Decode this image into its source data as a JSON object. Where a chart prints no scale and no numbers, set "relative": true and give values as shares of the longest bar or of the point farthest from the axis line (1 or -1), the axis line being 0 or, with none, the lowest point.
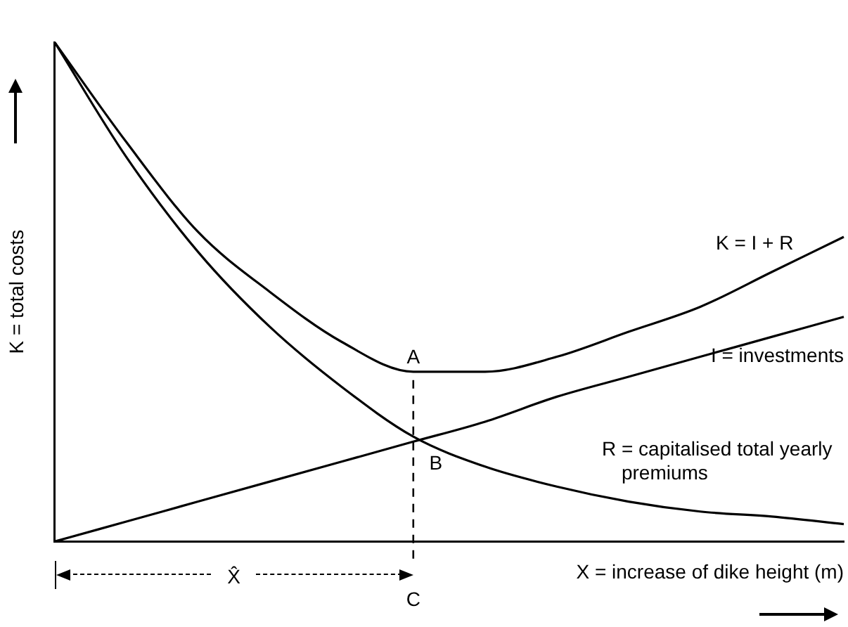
{
  "chart_data": {
    "type": "line",
    "relative": true,
    "xlabel": "X = increase of dike height (m)",
    "ylabel": "K = total costs",
    "categories": [
      null,
      null,
      null,
      null,
      null,
      null,
      null,
      null,
      null,
      null,
      null,
      null
    ],
    "series": [
      {
        "name": "K = I + R",
        "color": "#000000",
        "values": [
          1,
          0.8,
          0.62,
          0.5,
          0.4,
          0.34,
          0.34,
          0.37,
          0.42,
          0.47,
          0.54,
          0.61
        ]
      },
      {
        "name": "I = investments",
        "color": "#000000",
        "values": [
          0,
          0.04,
          0.08,
          0.12,
          0.16,
          0.2,
          0.24,
          0.29,
          0.33,
          0.37,
          0.41,
          0.45
        ]
      },
      {
        "name": "R = capitalised total yearly premiums",
        "color": "#000000",
        "values": [
          1,
          0.77,
          0.58,
          0.43,
          0.31,
          0.21,
          0.15,
          0.11,
          0.08,
          0.06,
          0.05,
          0.035
        ]
      }
    ],
    "annotations": [
      "A",
      "B",
      "C",
      "X̂"
    ],
    "marker": "none",
    "line_style": "solid",
    "grid": false,
    "legend": false
  }
}
